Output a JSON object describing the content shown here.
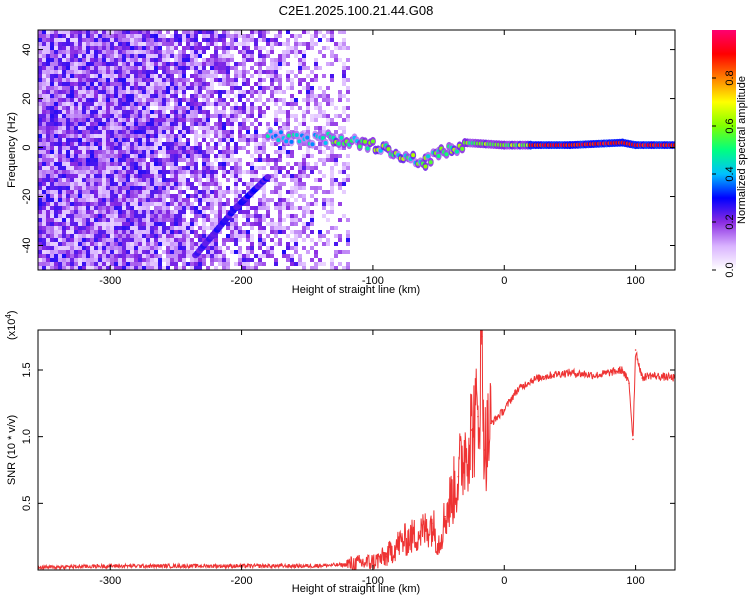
{
  "title": "C2E1.2025.100.21.44.G08",
  "chart_data": [
    {
      "type": "heatmap",
      "xlabel": "Height of straight line (km)",
      "ylabel": "Frequency (Hz)",
      "xlim": [
        -355,
        130
      ],
      "ylim": [
        -50,
        48
      ],
      "xticks": [
        -300,
        -200,
        -100,
        0,
        100
      ],
      "xtick_labels": [
        "-300",
        "-200",
        "-100",
        "0",
        "100"
      ],
      "yticks": [
        -40,
        -20,
        0,
        20,
        40
      ],
      "ytick_labels": [
        "-40",
        "-20",
        "0",
        "20",
        "40"
      ],
      "colorbar": {
        "label": "Normalized spectral amplitude",
        "range": [
          0,
          1
        ],
        "ticks": [
          0.0,
          0.2,
          0.4,
          0.6,
          0.8
        ],
        "tick_labels": [
          "0.0",
          "0.2",
          "0.4",
          "0.6",
          "0.8"
        ],
        "colormap": [
          "#ffffff",
          "#d9b3ff",
          "#8a2be2",
          "#0000ff",
          "#00c0ff",
          "#00ff80",
          "#80ff00",
          "#ffff00",
          "#ff8000",
          "#ff0000",
          "#ff0070"
        ]
      },
      "features": {
        "noise_region_x": [
          -355,
          -120
        ],
        "diagonal_feature": [
          [
            -235,
            -44
          ],
          [
            -205,
            -25
          ],
          [
            -180,
            -12
          ]
        ],
        "carrier_line": [
          [
            -180,
            5
          ],
          [
            -150,
            3
          ],
          [
            -130,
            4
          ],
          [
            -110,
            2
          ],
          [
            -90,
            0
          ],
          [
            -75,
            -4
          ],
          [
            -60,
            -6
          ],
          [
            -50,
            -2
          ],
          [
            -40,
            -1
          ],
          [
            -30,
            2
          ],
          [
            0,
            1
          ],
          [
            50,
            1
          ],
          [
            90,
            2
          ],
          [
            100,
            1
          ],
          [
            130,
            1
          ]
        ]
      }
    },
    {
      "type": "line",
      "xlabel": "Height of straight line (km)",
      "ylabel": "SNR (10 * v/v)",
      "y_multiplier": "(x10",
      "y_multiplier_exp": "4",
      "y_multiplier_close": ")",
      "xlim": [
        -355,
        130
      ],
      "ylim": [
        0,
        1.8
      ],
      "xticks": [
        -300,
        -200,
        -100,
        0,
        100
      ],
      "xtick_labels": [
        "-300",
        "-200",
        "-100",
        "0",
        "100"
      ],
      "yticks": [
        0.5,
        1.0,
        1.5
      ],
      "ytick_labels": [
        "0.5",
        "1.0",
        "1.5"
      ],
      "line_color": "#ee3333",
      "series": [
        {
          "x": [
            -355,
            -300,
            -200,
            -150,
            -120,
            -100,
            -90,
            -80,
            -70,
            -60,
            -55,
            -50,
            -45,
            -40,
            -35,
            -30,
            -25,
            -20,
            -17,
            -15,
            -10,
            -5,
            0,
            5,
            10,
            20,
            30,
            40,
            50,
            60,
            70,
            80,
            90,
            95,
            98,
            100,
            105,
            110,
            120,
            130
          ],
          "y": [
            0.02,
            0.03,
            0.03,
            0.03,
            0.04,
            0.06,
            0.1,
            0.2,
            0.25,
            0.3,
            0.35,
            0.2,
            0.4,
            0.55,
            0.7,
            0.9,
            1.05,
            1.15,
            1.75,
            0.9,
            1.1,
            1.15,
            1.2,
            1.28,
            1.35,
            1.42,
            1.45,
            1.47,
            1.48,
            1.47,
            1.46,
            1.48,
            1.5,
            1.4,
            0.98,
            1.65,
            1.44,
            1.46,
            1.45,
            1.44
          ]
        }
      ]
    }
  ]
}
